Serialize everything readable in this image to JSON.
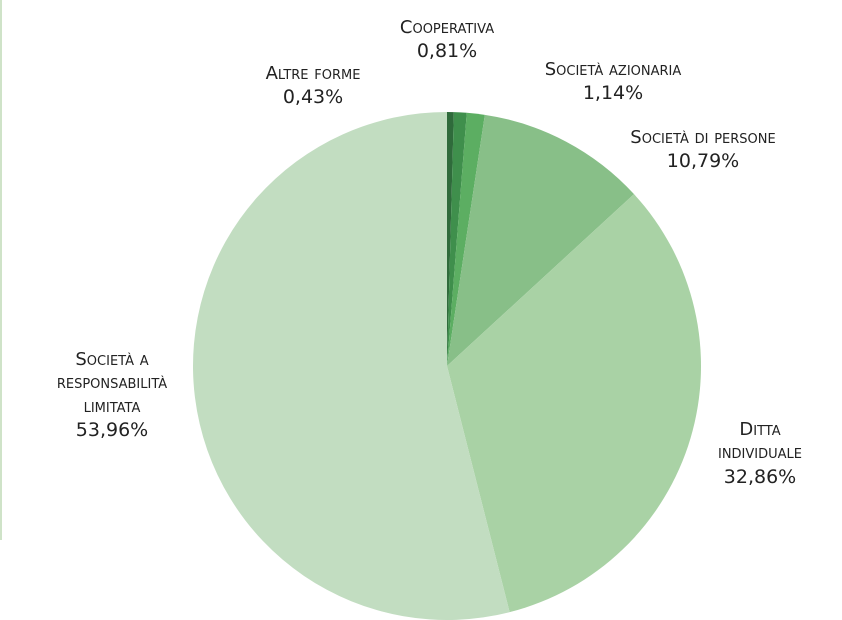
{
  "chart_data": {
    "type": "pie",
    "categories": [
      "Altre forme",
      "Cooperativa",
      "Società azionaria",
      "Società di persone",
      "Ditta individuale",
      "Società a responsabilità limitata"
    ],
    "values": [
      0.43,
      0.81,
      1.14,
      10.79,
      32.86,
      53.96
    ],
    "value_labels": [
      "0,43%",
      "0,81%",
      "1,14%",
      "10,79%",
      "32,86%",
      "53,96%"
    ],
    "colors": [
      "#2f6b3b",
      "#3f8f4c",
      "#5cae62",
      "#88bf88",
      "#a9d2a5",
      "#c2ddc1"
    ]
  }
}
